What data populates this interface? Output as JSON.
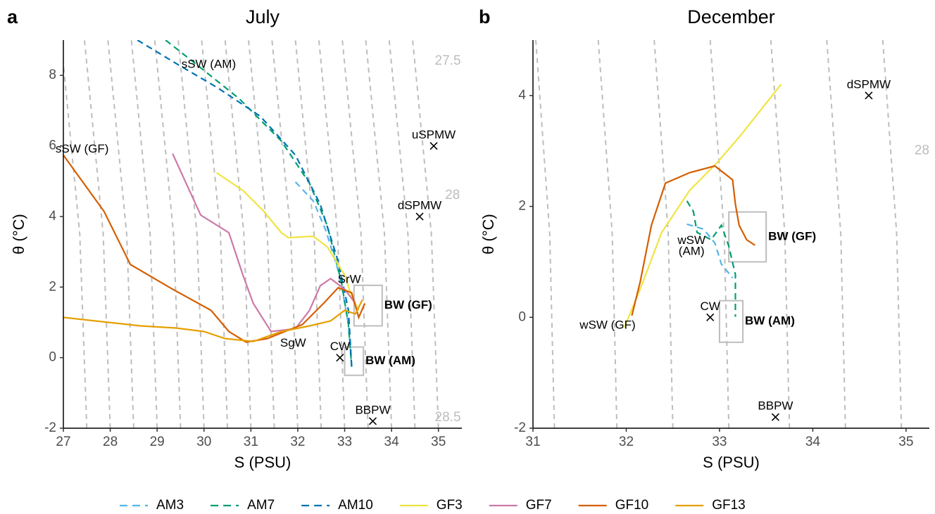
{
  "chart_data": [
    {
      "type": "line",
      "panel": "a",
      "title": "July",
      "x_label": "S (PSU)",
      "y_label": "θ (°C)",
      "xlim": [
        27,
        35.5
      ],
      "ylim": [
        -2,
        9
      ],
      "xticks": [
        27,
        28,
        29,
        30,
        31,
        32,
        33,
        34,
        35
      ],
      "yticks": [
        -2,
        0,
        2,
        4,
        6,
        8
      ],
      "series": [
        {
          "name": "AM3",
          "color": "#56B4E9",
          "dashed": true,
          "x": [
            31.95,
            32.33,
            32.6,
            32.9,
            33.08,
            33.15
          ],
          "y": [
            4.98,
            4.44,
            3.6,
            2.3,
            0.94,
            -0.26
          ]
        },
        {
          "name": "AM7",
          "color": "#009E73",
          "dashed": true,
          "x": [
            29.18,
            30.0,
            30.75,
            31.65,
            32.25,
            32.63,
            32.93,
            33.08,
            33.15
          ],
          "y": [
            9,
            8.14,
            7.34,
            6.14,
            4.94,
            3.74,
            2.14,
            0.94,
            -0.26
          ]
        },
        {
          "name": "AM10",
          "color": "#0072B2",
          "dashed": true,
          "x": [
            28.58,
            29.4,
            30.3,
            31.2,
            31.95,
            32.48,
            32.86,
            33.08,
            33.15
          ],
          "y": [
            9,
            8.34,
            7.64,
            6.84,
            5.74,
            4.34,
            2.74,
            1.34,
            -0.26
          ]
        },
        {
          "name": "GF3",
          "color": "#F0E442",
          "dashed": false,
          "x": [
            30.27,
            30.83,
            31.28,
            31.65,
            31.8,
            32.33,
            32.63,
            33.0,
            33.15,
            33.3
          ],
          "y": [
            5.24,
            4.74,
            4.14,
            3.54,
            3.4,
            3.44,
            3.14,
            2.34,
            1.74,
            1.34
          ]
        },
        {
          "name": "GF7",
          "color": "#CC79A7",
          "dashed": false,
          "x": [
            29.33,
            29.55,
            29.93,
            30.53,
            30.83,
            31.05,
            31.43,
            31.95,
            32.25,
            32.48,
            32.7,
            33.0,
            33.23
          ],
          "y": [
            5.78,
            5.14,
            4.04,
            3.54,
            2.34,
            1.54,
            0.74,
            0.82,
            1.34,
            2.04,
            2.24,
            1.94,
            1.54
          ]
        },
        {
          "name": "GF10",
          "color": "#D55E00",
          "dashed": false,
          "x": [
            27.0,
            27.87,
            28.43,
            29.33,
            30.15,
            30.53,
            30.9,
            31.35,
            32.1,
            32.55,
            32.86,
            33.15,
            33.3,
            33.43
          ],
          "y": [
            5.74,
            4.14,
            2.64,
            1.94,
            1.34,
            0.74,
            0.44,
            0.54,
            0.94,
            1.54,
            1.98,
            1.84,
            1.14,
            1.54
          ]
        },
        {
          "name": "GF13",
          "color": "#E69F00",
          "dashed": false,
          "x": [
            27.0,
            28.65,
            29.4,
            30.0,
            30.45,
            31.05,
            31.65,
            32.25,
            32.7,
            33.0,
            33.23,
            33.38
          ],
          "y": [
            1.14,
            0.9,
            0.84,
            0.74,
            0.54,
            0.46,
            0.74,
            0.9,
            1.04,
            1.34,
            1.24,
            1.64
          ]
        }
      ],
      "isopycnals": [
        {
          "x": [
            27.5,
            27.35,
            26.95
          ],
          "y": [
            -2,
            3.5,
            9
          ]
        },
        {
          "x": [
            28.0,
            27.85,
            27.45
          ],
          "y": [
            -2,
            3.5,
            9
          ]
        },
        {
          "x": [
            28.5,
            28.35,
            27.95
          ],
          "y": [
            -2,
            3.5,
            9
          ]
        },
        {
          "x": [
            29.0,
            28.85,
            28.45
          ],
          "y": [
            -2,
            3.5,
            9
          ]
        },
        {
          "x": [
            29.5,
            29.35,
            28.95
          ],
          "y": [
            -2,
            3.5,
            9
          ]
        },
        {
          "x": [
            30.0,
            29.85,
            29.45
          ],
          "y": [
            -2,
            3.5,
            9
          ]
        },
        {
          "x": [
            30.5,
            30.35,
            29.95
          ],
          "y": [
            -2,
            3.5,
            9
          ]
        },
        {
          "x": [
            31.0,
            30.85,
            30.45
          ],
          "y": [
            -2,
            3.5,
            9
          ]
        },
        {
          "x": [
            31.5,
            31.35,
            30.95
          ],
          "y": [
            -2,
            3.5,
            9
          ]
        },
        {
          "x": [
            32.0,
            31.85,
            31.45
          ],
          "y": [
            -2,
            3.5,
            9
          ]
        },
        {
          "x": [
            32.5,
            32.35,
            31.95
          ],
          "y": [
            -2,
            3.5,
            9
          ]
        },
        {
          "x": [
            33.0,
            32.85,
            32.45
          ],
          "y": [
            -2,
            3.5,
            9
          ]
        },
        {
          "x": [
            33.5,
            33.35,
            32.95
          ],
          "y": [
            -2,
            3.5,
            9
          ]
        },
        {
          "x": [
            34.0,
            33.85,
            33.45
          ],
          "y": [
            -2,
            3.5,
            9
          ]
        },
        {
          "x": [
            34.5,
            34.35,
            33.95
          ],
          "y": [
            -2,
            3.5,
            9
          ]
        },
        {
          "x": [
            35.0,
            34.85,
            34.45
          ],
          "y": [
            -2,
            3.5,
            9
          ]
        }
      ],
      "isopycnal_labels": [
        {
          "text": "27.5",
          "x": 35.2,
          "y": 8.4
        },
        {
          "text": "28",
          "x": 35.3,
          "y": 4.6
        },
        {
          "text": "28.5",
          "x": 35.2,
          "y": -1.7
        }
      ],
      "points": [
        {
          "label": "uSPMW",
          "x": 34.9,
          "y": 6
        },
        {
          "label": "dSPMW",
          "x": 34.6,
          "y": 4
        },
        {
          "label": "CW",
          "x": 32.9,
          "y": 0
        },
        {
          "label": "BBPW",
          "x": 33.6,
          "y": -1.8
        }
      ],
      "labels": [
        {
          "text": "sSW (AM)",
          "x": 30.1,
          "y": 8.3
        },
        {
          "text": "sSW (GF)",
          "x": 27.4,
          "y": 5.9
        },
        {
          "text": "SrW",
          "x": 33.1,
          "y": 2.2
        },
        {
          "text": "SgW",
          "x": 31.9,
          "y": 0.4
        }
      ],
      "boxes": [
        {
          "label": "BW (GF)",
          "x": [
            33.2,
            33.8
          ],
          "y": [
            0.9,
            2.05
          ]
        },
        {
          "label": "BW (AM)",
          "x": [
            33.0,
            33.4
          ],
          "y": [
            -0.5,
            0.3
          ]
        }
      ]
    },
    {
      "type": "line",
      "panel": "b",
      "title": "December",
      "x_label": "S (PSU)",
      "y_label": "θ (°C)",
      "xlim": [
        31,
        35.25
      ],
      "ylim": [
        -2,
        5
      ],
      "xticks": [
        31,
        32,
        33,
        34,
        35
      ],
      "yticks": [
        -2,
        0,
        2,
        4
      ],
      "series": [
        {
          "name": "AM3",
          "color": "#56B4E9",
          "dashed": true,
          "x": [
            32.65,
            32.83,
            32.95,
            33.02,
            33.14
          ],
          "y": [
            1.68,
            1.59,
            1.34,
            0.96,
            0.71
          ]
        },
        {
          "name": "AM7",
          "color": "#009E73",
          "dashed": true,
          "x": [
            32.65,
            32.72,
            32.76,
            32.91,
            33.02,
            33.1,
            33.17,
            33.17
          ],
          "y": [
            2.1,
            1.91,
            1.53,
            1.4,
            1.66,
            1.28,
            0.77,
            0.01
          ]
        },
        {
          "name": "GF3",
          "color": "#F0E442",
          "dashed": false,
          "x": [
            31.98,
            32.15,
            32.38,
            32.68,
            32.98,
            33.21,
            33.66
          ],
          "y": [
            -0.18,
            0.51,
            1.53,
            2.29,
            2.8,
            3.25,
            4.2
          ]
        },
        {
          "name": "GF10",
          "color": "#D55E00",
          "dashed": false,
          "x": [
            32.06,
            32.15,
            32.27,
            32.42,
            32.68,
            32.95,
            33.14,
            33.17,
            33.21,
            33.29,
            33.38
          ],
          "y": [
            0.03,
            0.64,
            1.66,
            2.42,
            2.61,
            2.73,
            2.48,
            2.04,
            1.66,
            1.4,
            1.3
          ]
        }
      ],
      "isopycnals": [
        {
          "x": [
            31.23,
            31.18,
            31.03
          ],
          "y": [
            -2,
            1.5,
            5
          ]
        },
        {
          "x": [
            31.9,
            31.85,
            31.7
          ],
          "y": [
            -2,
            1.5,
            5
          ]
        },
        {
          "x": [
            32.5,
            32.45,
            32.3
          ],
          "y": [
            -2,
            1.5,
            5
          ]
        },
        {
          "x": [
            33.1,
            33.05,
            32.9
          ],
          "y": [
            -2,
            1.5,
            5
          ]
        },
        {
          "x": [
            33.75,
            33.7,
            33.55
          ],
          "y": [
            -2,
            1.5,
            5
          ]
        },
        {
          "x": [
            34.35,
            34.3,
            34.15
          ],
          "y": [
            -2,
            1.5,
            5
          ]
        },
        {
          "x": [
            34.95,
            34.9,
            34.75
          ],
          "y": [
            -2,
            1.5,
            5
          ]
        }
      ],
      "isopycnal_labels": [
        {
          "text": "28",
          "x": 35.17,
          "y": 3.0
        }
      ],
      "points": [
        {
          "label": "dSPMW",
          "x": 34.6,
          "y": 4
        },
        {
          "label": "CW",
          "x": 32.9,
          "y": 0
        },
        {
          "label": "BBPW",
          "x": 33.6,
          "y": -1.8
        }
      ],
      "labels": [
        {
          "text": "wSW (GF)",
          "x": 31.8,
          "y": -0.15
        },
        {
          "text": "wSW",
          "x": 32.7,
          "y": 1.38
        },
        {
          "text": "(AM)",
          "x": 32.7,
          "y": 1.18
        }
      ],
      "boxes": [
        {
          "label": "BW (GF)",
          "x": [
            33.1,
            33.5
          ],
          "y": [
            1.0,
            1.9
          ]
        },
        {
          "label": "BW (AM)",
          "x": [
            33.0,
            33.25
          ],
          "y": [
            -0.45,
            0.3
          ]
        }
      ]
    }
  ]
}
